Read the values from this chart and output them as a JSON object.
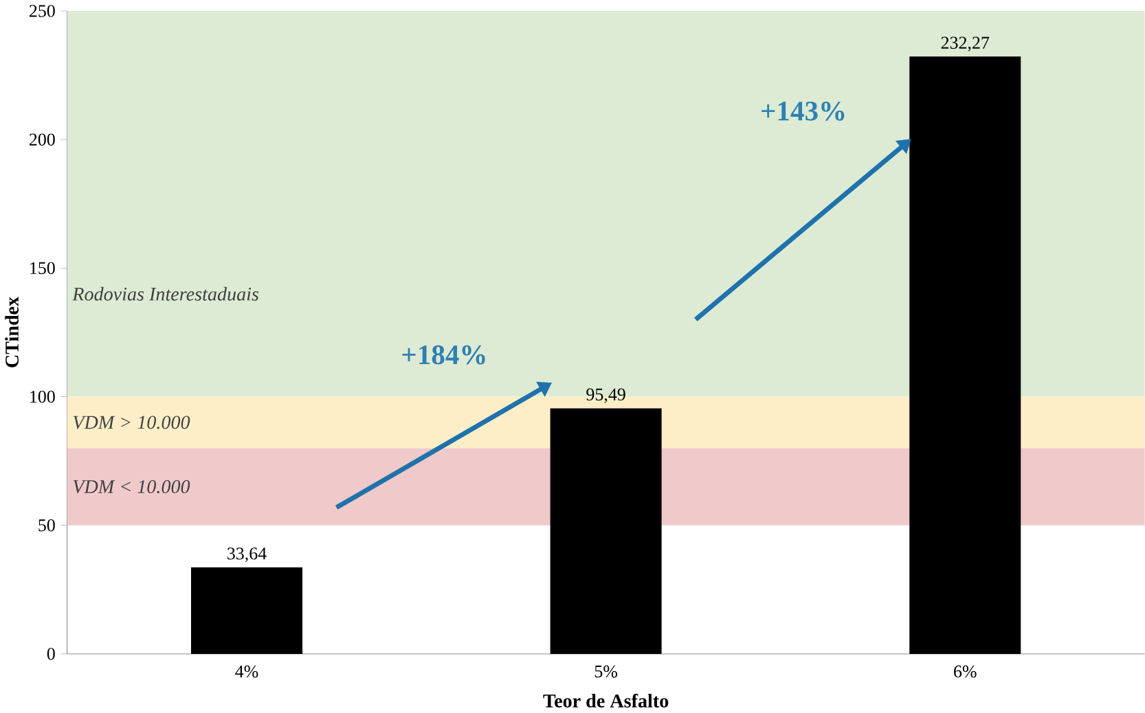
{
  "chart_data": {
    "type": "bar",
    "xlabel": "Teor de Asfalto",
    "ylabel": "CTindex",
    "categories": [
      "4%",
      "5%",
      "6%"
    ],
    "values": [
      33.64,
      95.49,
      232.27
    ],
    "color": "#000000",
    "value_labels": [
      "33,64",
      "95,49",
      "232,27"
    ],
    "ylim": [
      0,
      250
    ],
    "yticks": [
      0,
      50,
      100,
      150,
      200,
      250
    ],
    "bands": [
      {
        "axis": "y",
        "from": 100,
        "to": 250,
        "label": "Rodovias Interestaduais",
        "color": "#ddebd4"
      },
      {
        "axis": "y",
        "from": 80,
        "to": 100,
        "label": "VDM > 10.000",
        "color": "#fdeec8"
      },
      {
        "axis": "y",
        "from": 50,
        "to": 80,
        "label": "VDM < 10.000",
        "color": "#f0cacb"
      }
    ],
    "annotations": [
      "+184%",
      "+143%"
    ]
  }
}
